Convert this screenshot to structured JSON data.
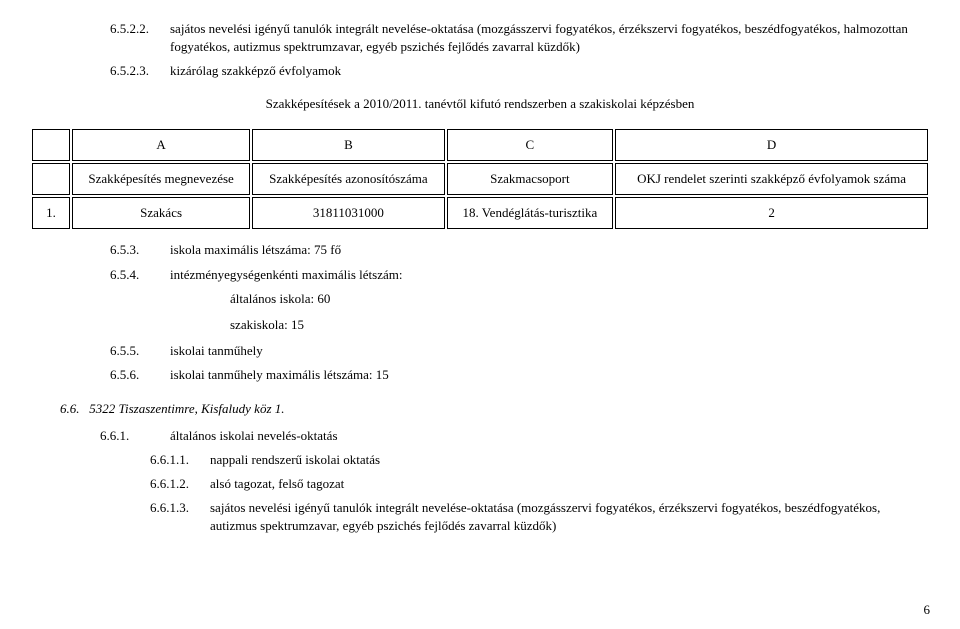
{
  "items1": [
    {
      "num": "6.5.2.2.",
      "text": "sajátos nevelési igényű tanulók integrált nevelése-oktatása (mozgásszervi fogyatékos, érzékszervi fogyatékos, beszédfogyatékos, halmozottan fogyatékos, autizmus spektrumzavar, egyéb pszichés fejlődés zavarral küzdők)"
    },
    {
      "num": "6.5.2.3.",
      "text": "kizárólag szakképző évfolyamok"
    }
  ],
  "centered": "Szakképesítések a 2010/2011. tanévtől kifutó rendszerben a szakiskolai képzésben",
  "table1": {
    "head_abcd": [
      "A",
      "B",
      "C",
      "D"
    ],
    "head_labels": [
      "Szakképesítés megnevezése",
      "Szakképesítés azonosítószáma",
      "Szakmacsoport",
      "OKJ rendelet szerinti szakképző évfolyamok száma"
    ],
    "row": [
      "1.",
      "Szakács",
      "31811031000",
      "18. Vendéglátás-turisztika",
      "2"
    ]
  },
  "items2": [
    {
      "num": "6.5.3.",
      "text": "iskola maximális létszáma: 75 fő"
    },
    {
      "num": "6.5.4.",
      "text": "intézményegységenkénti maximális létszám:"
    }
  ],
  "indent_lines": [
    "általános iskola: 60",
    "szakiskola: 15"
  ],
  "items3": [
    {
      "num": "6.5.5.",
      "text": "iskolai tanműhely"
    },
    {
      "num": "6.5.6.",
      "text": "iskolai tanműhely maximális létszáma: 15"
    }
  ],
  "sec_heading": {
    "num": "6.6.",
    "text": "5322 Tiszaszentimre, Kisfaludy köz 1."
  },
  "items4": [
    {
      "num": "6.6.1.",
      "text": "általános iskolai nevelés-oktatás"
    }
  ],
  "items5": [
    {
      "num": "6.6.1.1.",
      "text": "nappali rendszerű iskolai oktatás"
    },
    {
      "num": "6.6.1.2.",
      "text": "alsó tagozat, felső tagozat"
    },
    {
      "num": "6.6.1.3.",
      "text": "sajátos nevelési igényű tanulók integrált nevelése-oktatása (mozgásszervi fogyatékos, érzékszervi fogyatékos, beszédfogyatékos, autizmus spektrumzavar, egyéb pszichés fejlődés zavarral küzdők)"
    }
  ],
  "page_number": "6"
}
